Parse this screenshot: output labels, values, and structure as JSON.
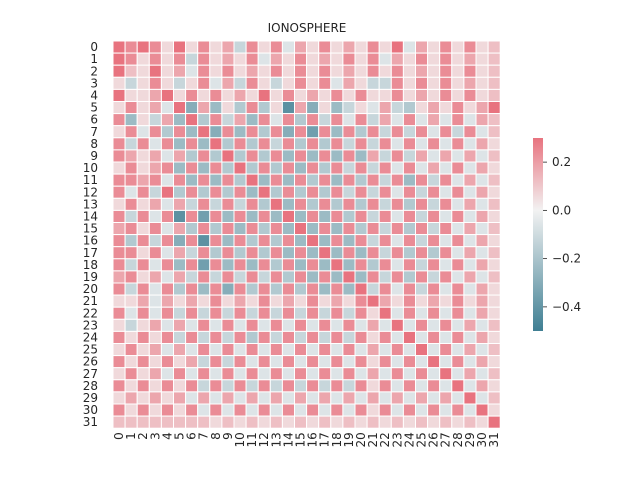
{
  "chart_data": {
    "type": "heatmap",
    "title": "IONOSPHERE",
    "x_tick_labels": [
      "0",
      "1",
      "2",
      "3",
      "4",
      "5",
      "6",
      "7",
      "8",
      "9",
      "10",
      "11",
      "12",
      "13",
      "14",
      "15",
      "16",
      "17",
      "18",
      "19",
      "20",
      "21",
      "22",
      "23",
      "24",
      "25",
      "26",
      "27",
      "28",
      "29",
      "30",
      "31"
    ],
    "y_tick_labels": [
      "0",
      "1",
      "2",
      "3",
      "4",
      "5",
      "6",
      "7",
      "8",
      "9",
      "10",
      "11",
      "12",
      "13",
      "14",
      "15",
      "16",
      "17",
      "18",
      "19",
      "20",
      "21",
      "22",
      "23",
      "24",
      "25",
      "26",
      "27",
      "28",
      "29",
      "30",
      "31"
    ],
    "colorbar": {
      "vmin": -0.5,
      "vmax": 0.3,
      "ticks": [
        0.2,
        0.0,
        -0.2,
        -0.4
      ],
      "tick_labels": [
        "0.2",
        "0.0",
        "−0.2",
        "−0.4"
      ]
    },
    "colormap": {
      "negative": "#3f7f93",
      "center": "#f2f2f2",
      "positive": "#e8737f"
    },
    "grid_line_color": "#ffffff",
    "values": [
      [
        0.3,
        0.24,
        0.3,
        0.24,
        0.06,
        0.3,
        0.06,
        0.24,
        0.06,
        0.18,
        -0.12,
        0.24,
        0.06,
        0.24,
        -0.06,
        0.18,
        0.06,
        0.24,
        0.06,
        0.18,
        0.06,
        0.24,
        0.06,
        0.3,
        -0.06,
        0.18,
        0.06,
        0.24,
        0.06,
        0.24,
        0.06,
        0.12
      ],
      [
        0.3,
        0.24,
        0.06,
        0.24,
        0.06,
        0.24,
        -0.12,
        0.24,
        0.06,
        0.18,
        0.06,
        0.24,
        -0.06,
        0.18,
        0.06,
        0.24,
        0.06,
        0.18,
        0.06,
        0.24,
        0.06,
        0.24,
        -0.06,
        0.18,
        0.06,
        0.24,
        0.06,
        0.24,
        0.06,
        0.18,
        0.06,
        0.12
      ],
      [
        0.3,
        0.12,
        0.06,
        0.3,
        0.06,
        0.18,
        -0.06,
        0.24,
        0.06,
        0.24,
        0.06,
        0.18,
        0.06,
        0.24,
        0.06,
        0.24,
        0.06,
        0.24,
        0.06,
        0.18,
        0.06,
        0.24,
        0.06,
        0.24,
        0.06,
        0.18,
        0.06,
        0.24,
        0.06,
        0.24,
        0.06,
        0.12
      ],
      [
        0.06,
        -0.12,
        0.06,
        0.24,
        0.06,
        -0.12,
        0.06,
        0.24,
        -0.06,
        0.18,
        -0.12,
        0.24,
        0.06,
        -0.12,
        0.06,
        0.24,
        0.06,
        0.24,
        -0.06,
        0.18,
        0.06,
        -0.12,
        -0.12,
        0.24,
        0.06,
        0.24,
        0.06,
        0.24,
        0.06,
        0.18,
        0.06,
        0.12
      ],
      [
        0.3,
        0.06,
        0.06,
        0.18,
        0.3,
        0.06,
        0.24,
        0.06,
        0.24,
        0.06,
        0.18,
        0.06,
        0.3,
        0.06,
        0.24,
        0.06,
        0.18,
        0.06,
        0.24,
        0.06,
        0.24,
        0.06,
        0.06,
        0.24,
        0.06,
        0.18,
        0.06,
        0.24,
        0.06,
        0.24,
        0.06,
        0.12
      ],
      [
        0.06,
        0.24,
        0.06,
        0.18,
        -0.06,
        0.3,
        -0.3,
        0.18,
        -0.24,
        0.06,
        -0.18,
        0.24,
        -0.18,
        0.06,
        -0.42,
        0.18,
        -0.3,
        0.06,
        -0.24,
        -0.12,
        0.06,
        -0.06,
        0.18,
        -0.12,
        -0.18,
        0.06,
        0.18,
        0.06,
        0.24,
        0.06,
        0.18,
        0.3
      ],
      [
        0.24,
        -0.24,
        0.06,
        -0.12,
        0.18,
        -0.24,
        0.3,
        -0.18,
        0.24,
        -0.12,
        0.18,
        -0.24,
        0.24,
        -0.06,
        0.24,
        -0.18,
        0.24,
        -0.12,
        0.24,
        -0.06,
        0.24,
        -0.12,
        0.18,
        -0.06,
        0.24,
        -0.06,
        0.18,
        -0.06,
        0.24,
        -0.06,
        0.18,
        0.12
      ],
      [
        0.06,
        0.24,
        -0.06,
        0.24,
        -0.18,
        0.24,
        -0.24,
        0.3,
        -0.3,
        0.24,
        -0.24,
        0.24,
        -0.18,
        0.24,
        -0.3,
        0.24,
        -0.36,
        0.24,
        -0.24,
        0.24,
        -0.18,
        0.24,
        -0.12,
        0.24,
        -0.12,
        0.24,
        -0.06,
        0.24,
        -0.12,
        0.24,
        -0.06,
        0.12
      ],
      [
        0.24,
        -0.12,
        0.24,
        -0.06,
        0.24,
        -0.24,
        0.24,
        -0.24,
        0.3,
        -0.18,
        0.24,
        -0.18,
        0.24,
        -0.12,
        0.24,
        -0.18,
        0.24,
        -0.18,
        0.24,
        -0.12,
        0.24,
        -0.12,
        0.24,
        -0.06,
        0.24,
        -0.06,
        0.24,
        -0.06,
        0.24,
        -0.06,
        0.18,
        0.06
      ],
      [
        0.24,
        0.18,
        0.06,
        0.18,
        -0.06,
        0.18,
        -0.18,
        0.24,
        -0.18,
        0.3,
        -0.18,
        0.24,
        -0.18,
        0.24,
        -0.24,
        0.24,
        -0.24,
        0.24,
        -0.24,
        0.24,
        -0.24,
        0.18,
        -0.12,
        0.24,
        -0.12,
        0.18,
        -0.06,
        0.18,
        -0.06,
        0.18,
        -0.06,
        0.12
      ],
      [
        0.06,
        0.24,
        0.06,
        0.18,
        0.24,
        -0.24,
        0.24,
        -0.24,
        0.24,
        -0.18,
        0.3,
        -0.18,
        0.24,
        -0.18,
        0.24,
        -0.24,
        0.24,
        -0.18,
        0.24,
        -0.12,
        0.24,
        -0.12,
        0.24,
        -0.06,
        0.24,
        -0.06,
        0.18,
        -0.06,
        0.24,
        -0.06,
        0.18,
        0.06
      ],
      [
        0.24,
        0.24,
        0.18,
        0.24,
        -0.06,
        0.24,
        -0.24,
        0.24,
        -0.24,
        0.24,
        -0.18,
        0.3,
        -0.24,
        0.24,
        -0.24,
        0.24,
        -0.18,
        0.24,
        -0.24,
        0.24,
        -0.18,
        0.24,
        -0.12,
        0.24,
        -0.24,
        0.24,
        -0.12,
        0.24,
        -0.06,
        0.18,
        -0.06,
        0.12
      ],
      [
        0.24,
        -0.06,
        0.24,
        -0.12,
        0.3,
        -0.18,
        0.24,
        -0.18,
        0.24,
        -0.18,
        0.24,
        -0.24,
        0.3,
        -0.18,
        0.24,
        -0.18,
        0.24,
        -0.18,
        0.24,
        -0.12,
        0.24,
        -0.12,
        0.24,
        -0.06,
        0.24,
        -0.12,
        0.24,
        -0.06,
        0.24,
        -0.06,
        0.18,
        0.06
      ],
      [
        0.06,
        0.24,
        0.06,
        0.18,
        -0.06,
        0.18,
        -0.12,
        0.24,
        -0.12,
        0.24,
        -0.12,
        0.24,
        -0.18,
        0.3,
        -0.24,
        0.24,
        -0.18,
        0.24,
        -0.18,
        0.24,
        -0.18,
        0.24,
        -0.12,
        0.24,
        -0.18,
        0.24,
        -0.12,
        0.24,
        -0.06,
        0.18,
        -0.06,
        0.12
      ],
      [
        0.24,
        -0.12,
        0.24,
        -0.06,
        0.24,
        -0.42,
        0.24,
        -0.36,
        0.24,
        -0.24,
        0.24,
        -0.24,
        0.24,
        -0.24,
        0.3,
        -0.24,
        0.24,
        -0.24,
        0.24,
        -0.18,
        0.24,
        -0.12,
        0.24,
        -0.06,
        0.24,
        -0.12,
        0.24,
        -0.06,
        0.24,
        -0.06,
        0.18,
        0.06
      ],
      [
        0.18,
        0.24,
        0.06,
        0.24,
        -0.06,
        0.18,
        -0.18,
        0.24,
        -0.18,
        0.24,
        -0.24,
        0.24,
        -0.18,
        0.24,
        -0.24,
        0.3,
        -0.24,
        0.24,
        -0.24,
        0.24,
        -0.18,
        0.24,
        -0.12,
        0.24,
        -0.18,
        0.24,
        -0.12,
        0.24,
        -0.06,
        0.18,
        -0.06,
        0.12
      ],
      [
        0.24,
        -0.18,
        0.24,
        -0.12,
        0.24,
        -0.3,
        0.24,
        -0.42,
        0.24,
        -0.24,
        0.24,
        -0.18,
        0.24,
        -0.18,
        0.24,
        -0.24,
        0.3,
        -0.24,
        0.24,
        -0.24,
        0.24,
        -0.12,
        0.24,
        -0.06,
        0.24,
        -0.12,
        0.24,
        -0.06,
        0.24,
        -0.06,
        0.18,
        0.06
      ],
      [
        0.24,
        0.24,
        0.06,
        0.24,
        -0.06,
        0.18,
        -0.12,
        0.24,
        -0.18,
        0.24,
        -0.18,
        0.24,
        -0.18,
        0.24,
        -0.24,
        0.24,
        -0.24,
        0.3,
        -0.24,
        0.24,
        -0.24,
        0.24,
        -0.12,
        0.24,
        -0.18,
        0.24,
        -0.18,
        0.24,
        -0.06,
        0.18,
        -0.06,
        0.12
      ],
      [
        0.24,
        -0.12,
        0.24,
        -0.06,
        0.24,
        -0.24,
        0.24,
        -0.36,
        0.24,
        -0.24,
        0.24,
        -0.24,
        0.24,
        -0.18,
        0.24,
        -0.24,
        0.24,
        -0.24,
        0.3,
        -0.24,
        0.24,
        -0.18,
        0.24,
        -0.06,
        0.24,
        -0.12,
        0.24,
        -0.06,
        0.24,
        -0.06,
        0.18,
        0.06
      ],
      [
        0.18,
        0.24,
        0.06,
        0.18,
        -0.06,
        0.18,
        -0.12,
        0.24,
        -0.12,
        0.24,
        -0.12,
        0.24,
        -0.12,
        0.24,
        -0.18,
        0.24,
        -0.24,
        0.24,
        -0.24,
        0.3,
        -0.24,
        0.24,
        -0.12,
        0.24,
        -0.18,
        0.24,
        -0.12,
        0.24,
        -0.06,
        0.18,
        -0.06,
        0.12
      ],
      [
        0.24,
        -0.12,
        0.24,
        -0.06,
        0.24,
        -0.18,
        0.24,
        -0.24,
        0.24,
        -0.3,
        0.24,
        -0.18,
        0.24,
        -0.18,
        0.24,
        -0.18,
        0.24,
        -0.24,
        0.24,
        -0.24,
        0.3,
        -0.12,
        0.24,
        -0.06,
        0.24,
        -0.12,
        0.24,
        -0.06,
        0.24,
        -0.06,
        0.18,
        0.06
      ],
      [
        0.06,
        0.06,
        0.18,
        -0.06,
        0.18,
        0.06,
        0.18,
        0.06,
        0.24,
        0.06,
        0.18,
        0.06,
        0.24,
        0.06,
        0.18,
        0.06,
        0.24,
        0.06,
        0.18,
        0.06,
        0.24,
        0.3,
        0.18,
        0.06,
        0.24,
        0.06,
        0.18,
        0.06,
        0.24,
        0.06,
        0.18,
        0.06
      ],
      [
        0.24,
        -0.06,
        0.24,
        -0.06,
        0.24,
        -0.12,
        0.24,
        -0.12,
        0.24,
        -0.12,
        0.24,
        -0.12,
        0.24,
        -0.12,
        0.24,
        -0.12,
        0.24,
        -0.12,
        0.24,
        -0.12,
        0.24,
        0.06,
        0.3,
        -0.06,
        0.24,
        -0.06,
        0.24,
        -0.06,
        0.24,
        -0.06,
        0.18,
        0.06
      ],
      [
        0.06,
        -0.12,
        0.06,
        0.18,
        -0.06,
        0.18,
        -0.06,
        0.24,
        -0.06,
        0.24,
        -0.06,
        0.24,
        -0.06,
        0.24,
        -0.06,
        0.24,
        -0.06,
        0.24,
        -0.06,
        0.24,
        -0.06,
        0.18,
        -0.06,
        0.3,
        -0.06,
        0.24,
        -0.06,
        0.24,
        -0.06,
        0.18,
        -0.06,
        0.12
      ],
      [
        0.24,
        0.06,
        0.24,
        0.06,
        0.24,
        -0.12,
        0.24,
        -0.12,
        0.24,
        -0.12,
        0.24,
        -0.18,
        0.24,
        -0.12,
        0.24,
        -0.12,
        0.24,
        -0.12,
        0.24,
        -0.12,
        0.24,
        0.06,
        0.24,
        -0.06,
        0.3,
        -0.06,
        0.24,
        -0.06,
        0.24,
        -0.06,
        0.18,
        0.06
      ],
      [
        0.06,
        0.24,
        0.06,
        0.18,
        -0.06,
        0.18,
        -0.06,
        0.24,
        -0.06,
        0.24,
        -0.06,
        0.24,
        -0.06,
        0.24,
        -0.06,
        0.24,
        -0.06,
        0.24,
        -0.06,
        0.24,
        -0.06,
        0.18,
        -0.06,
        0.24,
        -0.06,
        0.3,
        -0.06,
        0.24,
        -0.06,
        0.18,
        -0.06,
        0.12
      ],
      [
        0.24,
        0.06,
        0.24,
        0.06,
        0.24,
        0.06,
        0.18,
        -0.12,
        0.24,
        -0.12,
        0.24,
        -0.06,
        0.24,
        -0.06,
        0.24,
        -0.06,
        0.24,
        -0.06,
        0.24,
        -0.06,
        0.24,
        0.06,
        0.24,
        -0.06,
        0.24,
        -0.06,
        0.3,
        -0.06,
        0.24,
        -0.06,
        0.18,
        0.06
      ],
      [
        0.06,
        0.24,
        0.06,
        0.18,
        -0.06,
        0.24,
        -0.06,
        0.24,
        -0.06,
        0.24,
        -0.06,
        0.24,
        -0.06,
        0.24,
        -0.06,
        0.24,
        -0.06,
        0.24,
        -0.06,
        0.24,
        -0.06,
        0.18,
        -0.06,
        0.24,
        -0.06,
        0.24,
        -0.06,
        0.3,
        -0.06,
        0.18,
        -0.06,
        0.12
      ],
      [
        0.24,
        0.06,
        0.24,
        0.06,
        0.24,
        0.06,
        0.24,
        -0.12,
        0.24,
        -0.12,
        0.24,
        -0.12,
        0.24,
        -0.12,
        0.24,
        -0.12,
        0.24,
        -0.12,
        0.24,
        -0.12,
        0.24,
        0.06,
        0.24,
        -0.06,
        0.24,
        -0.06,
        0.24,
        -0.06,
        0.3,
        -0.06,
        0.18,
        0.06
      ],
      [
        0.06,
        0.18,
        0.06,
        0.18,
        0.06,
        0.18,
        -0.06,
        0.18,
        -0.06,
        0.18,
        -0.06,
        0.18,
        -0.06,
        0.18,
        -0.06,
        0.18,
        -0.06,
        0.18,
        -0.06,
        0.18,
        -0.06,
        0.18,
        -0.06,
        0.18,
        -0.06,
        0.18,
        -0.06,
        0.18,
        -0.06,
        0.3,
        -0.06,
        0.12
      ],
      [
        0.24,
        0.06,
        0.24,
        0.06,
        0.24,
        0.06,
        0.24,
        -0.06,
        0.24,
        -0.06,
        0.24,
        -0.06,
        0.24,
        -0.06,
        0.24,
        -0.06,
        0.24,
        -0.06,
        0.24,
        -0.06,
        0.24,
        0.06,
        0.24,
        -0.06,
        0.24,
        -0.06,
        0.24,
        -0.06,
        0.24,
        -0.06,
        0.3,
        0.06
      ],
      [
        0.12,
        0.12,
        0.12,
        0.12,
        0.12,
        0.12,
        0.12,
        0.12,
        0.06,
        0.12,
        0.06,
        0.12,
        0.06,
        0.12,
        0.06,
        0.12,
        0.06,
        0.12,
        0.06,
        0.12,
        0.06,
        0.12,
        0.06,
        0.12,
        0.06,
        0.12,
        0.06,
        0.12,
        0.06,
        0.12,
        0.06,
        0.3
      ]
    ]
  }
}
